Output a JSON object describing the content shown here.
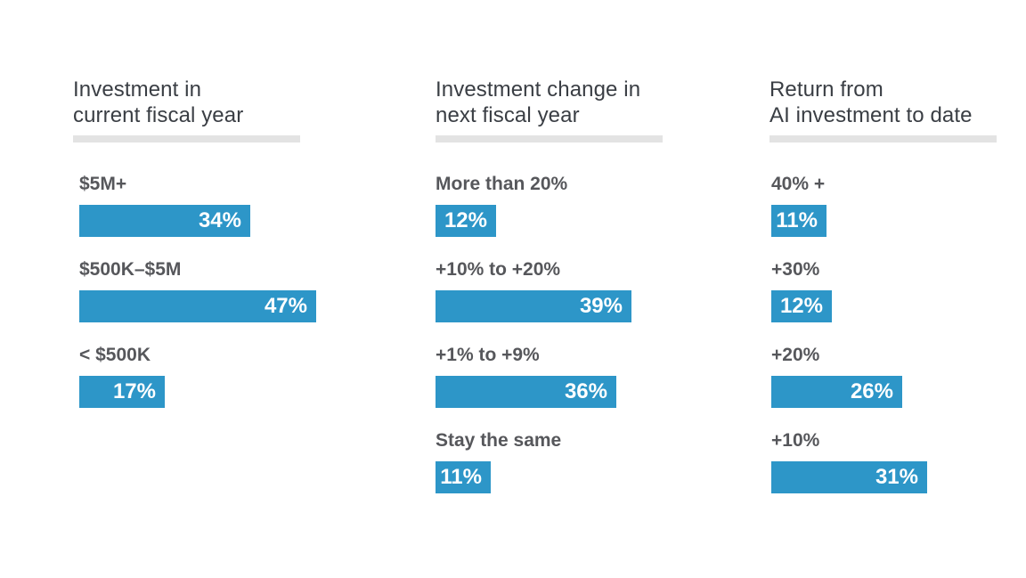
{
  "styles": {
    "background": "#FFFFFF",
    "bar_color": "#2D96C8",
    "header_text_color": "#3A3E44",
    "label_text_color": "#56575B",
    "value_text_color": "#FFFFFF",
    "underline_color": "#E3E3E3"
  },
  "chart_data": [
    {
      "type": "bar",
      "orientation": "horizontal",
      "title": "Investment in current fiscal year",
      "title_lines": [
        "Investment in",
        "current fiscal year"
      ],
      "categories": [
        "$5M+",
        "$500K–$5M",
        "< $500K"
      ],
      "values": [
        34,
        47,
        17
      ],
      "value_labels": [
        "34%",
        "47%",
        "17%"
      ],
      "unit": "%",
      "legend": "none",
      "grid": "off",
      "data_labels": "inside-end"
    },
    {
      "type": "bar",
      "orientation": "horizontal",
      "title": "Investment change in next fiscal year",
      "title_lines": [
        "Investment change in",
        "next fiscal year"
      ],
      "categories": [
        "More than 20%",
        "+10% to +20%",
        "+1% to +9%",
        "Stay the same"
      ],
      "values": [
        12,
        39,
        36,
        11
      ],
      "value_labels": [
        "12%",
        "39%",
        "36%",
        "11%"
      ],
      "unit": "%",
      "legend": "none",
      "grid": "off",
      "data_labels": "inside-end"
    },
    {
      "type": "bar",
      "orientation": "horizontal",
      "title": "Return from AI investment to date",
      "title_lines": [
        "Return from",
        "AI investment to date"
      ],
      "categories": [
        "40% +",
        "+30%",
        "+20%",
        "+10%"
      ],
      "values": [
        11,
        12,
        26,
        31
      ],
      "value_labels": [
        "11%",
        "12%",
        "26%",
        "31%"
      ],
      "unit": "%",
      "legend": "none",
      "grid": "off",
      "data_labels": "inside-end"
    }
  ]
}
